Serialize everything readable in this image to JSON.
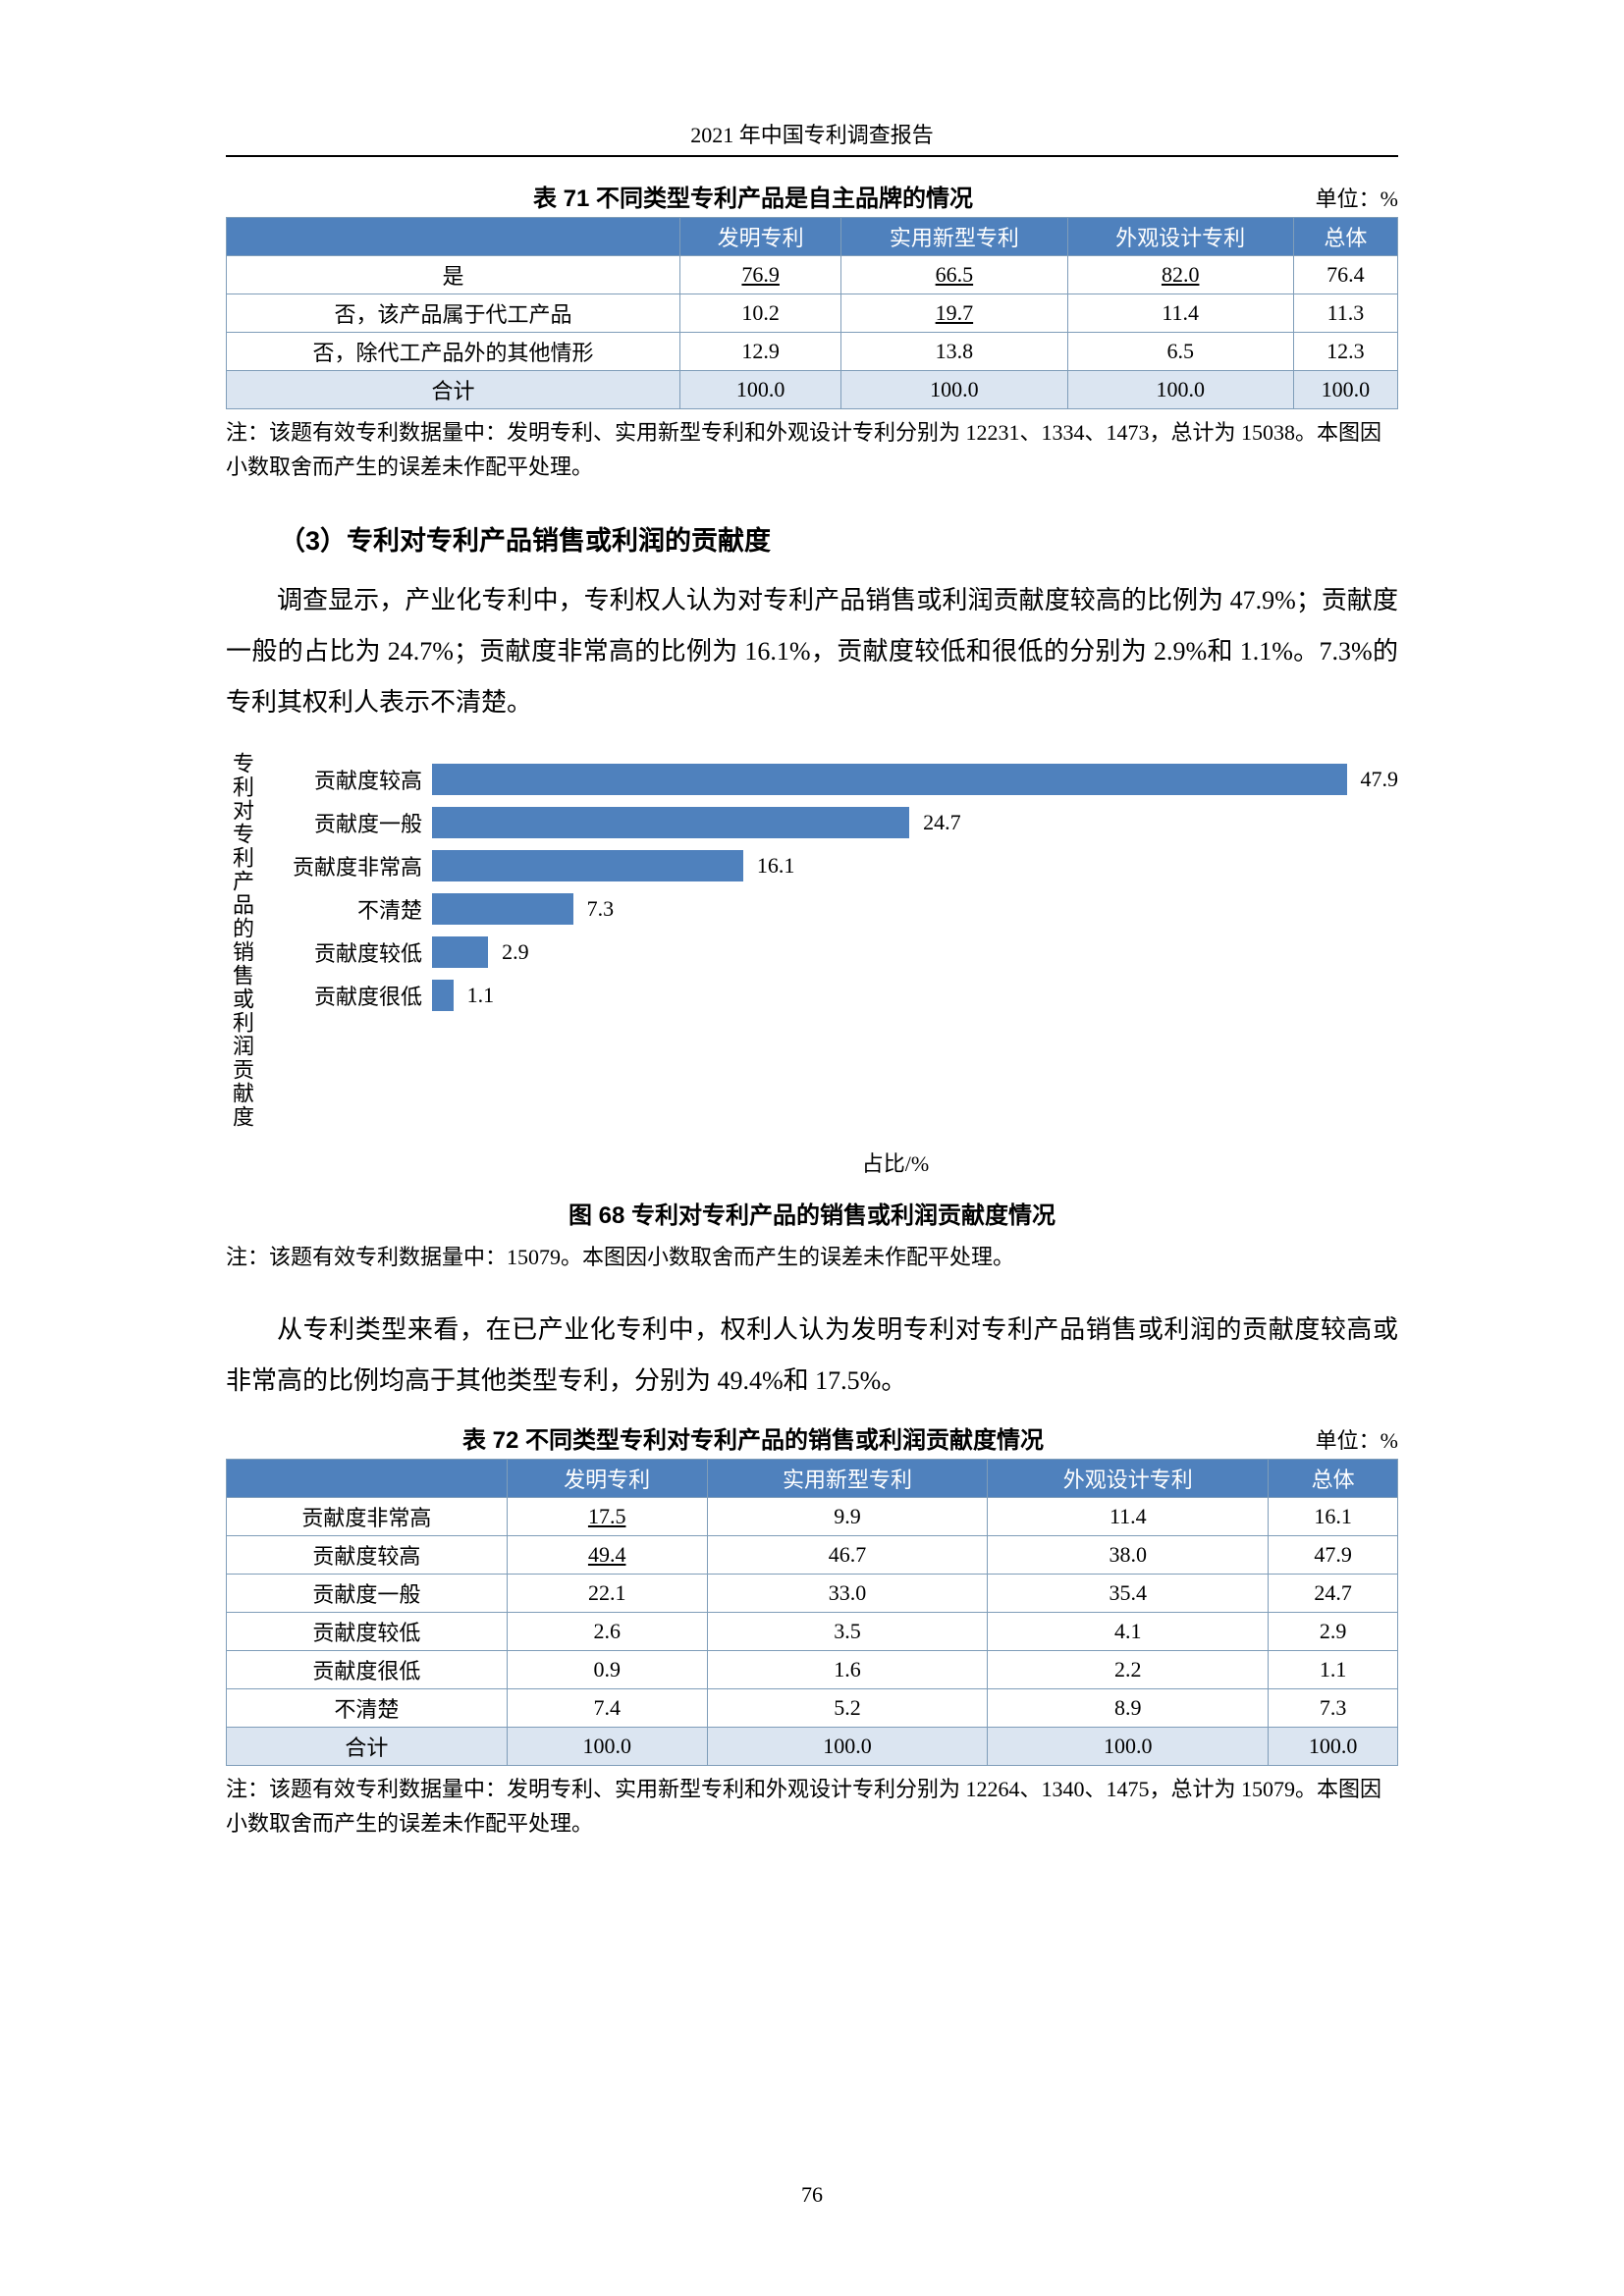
{
  "running_header": "2021 年中国专利调查报告",
  "page_number": "76",
  "table71": {
    "title": "表 71  不同类型专利产品是自主品牌的情况",
    "unit": "单位：%",
    "columns": [
      "",
      "发明专利",
      "实用新型专利",
      "外观设计专利",
      "总体"
    ],
    "rows": [
      {
        "label": "是",
        "c1": "76.9",
        "c2": "66.5",
        "c3": "82.0",
        "c4": "76.4",
        "u1": true,
        "u2": true,
        "u3": true
      },
      {
        "label": "否，该产品属于代工产品",
        "c1": "10.2",
        "c2": "19.7",
        "c3": "11.4",
        "c4": "11.3",
        "u2": true
      },
      {
        "label": "否，除代工产品外的其他情形",
        "c1": "12.9",
        "c2": "13.8",
        "c3": "6.5",
        "c4": "12.3"
      },
      {
        "label": "合计",
        "c1": "100.0",
        "c2": "100.0",
        "c3": "100.0",
        "c4": "100.0",
        "total": true
      }
    ],
    "note": "注：该题有效专利数据量中：发明专利、实用新型专利和外观设计专利分别为 12231、1334、1473，总计为 15038。本图因小数取舍而产生的误差未作配平处理。"
  },
  "section_heading": "（3）专利对专利产品销售或利润的贡献度",
  "para1": "调查显示，产业化专利中，专利权人认为对专利产品销售或利润贡献度较高的比例为 47.9%；贡献度一般的占比为 24.7%；贡献度非常高的比例为 16.1%，贡献度较低和很低的分别为 2.9%和 1.1%。7.3%的专利其权利人表示不清楚。",
  "figure68": {
    "y_axis_label": "专利对专利产品的销售或利润贡献度",
    "x_axis_label": "占比/%",
    "caption": "图 68  专利对专利产品的销售或利润贡献度情况",
    "bar_color": "#4f81bd",
    "max_x": 50,
    "bars": [
      {
        "cat": "贡献度较高",
        "val": 47.9
      },
      {
        "cat": "贡献度一般",
        "val": 24.7
      },
      {
        "cat": "贡献度非常高",
        "val": 16.1
      },
      {
        "cat": "不清楚",
        "val": 7.3
      },
      {
        "cat": "贡献度较低",
        "val": 2.9
      },
      {
        "cat": "贡献度很低",
        "val": 1.1
      }
    ],
    "note": "注：该题有效专利数据量中：15079。本图因小数取舍而产生的误差未作配平处理。"
  },
  "para2": "从专利类型来看，在已产业化专利中，权利人认为发明专利对专利产品销售或利润的贡献度较高或非常高的比例均高于其他类型专利，分别为 49.4%和 17.5%。",
  "table72": {
    "title": "表 72  不同类型专利对专利产品的销售或利润贡献度情况",
    "unit": "单位：%",
    "columns": [
      "",
      "发明专利",
      "实用新型专利",
      "外观设计专利",
      "总体"
    ],
    "rows": [
      {
        "label": "贡献度非常高",
        "c1": "17.5",
        "c2": "9.9",
        "c3": "11.4",
        "c4": "16.1",
        "u1": true
      },
      {
        "label": "贡献度较高",
        "c1": "49.4",
        "c2": "46.7",
        "c3": "38.0",
        "c4": "47.9",
        "u1": true
      },
      {
        "label": "贡献度一般",
        "c1": "22.1",
        "c2": "33.0",
        "c3": "35.4",
        "c4": "24.7"
      },
      {
        "label": "贡献度较低",
        "c1": "2.6",
        "c2": "3.5",
        "c3": "4.1",
        "c4": "2.9"
      },
      {
        "label": "贡献度很低",
        "c1": "0.9",
        "c2": "1.6",
        "c3": "2.2",
        "c4": "1.1"
      },
      {
        "label": "不清楚",
        "c1": "7.4",
        "c2": "5.2",
        "c3": "8.9",
        "c4": "7.3"
      },
      {
        "label": "合计",
        "c1": "100.0",
        "c2": "100.0",
        "c3": "100.0",
        "c4": "100.0",
        "total": true
      }
    ],
    "note": "注：该题有效专利数据量中：发明专利、实用新型专利和外观设计专利分别为 12264、1340、1475，总计为 15079。本图因小数取舍而产生的误差未作配平处理。"
  }
}
